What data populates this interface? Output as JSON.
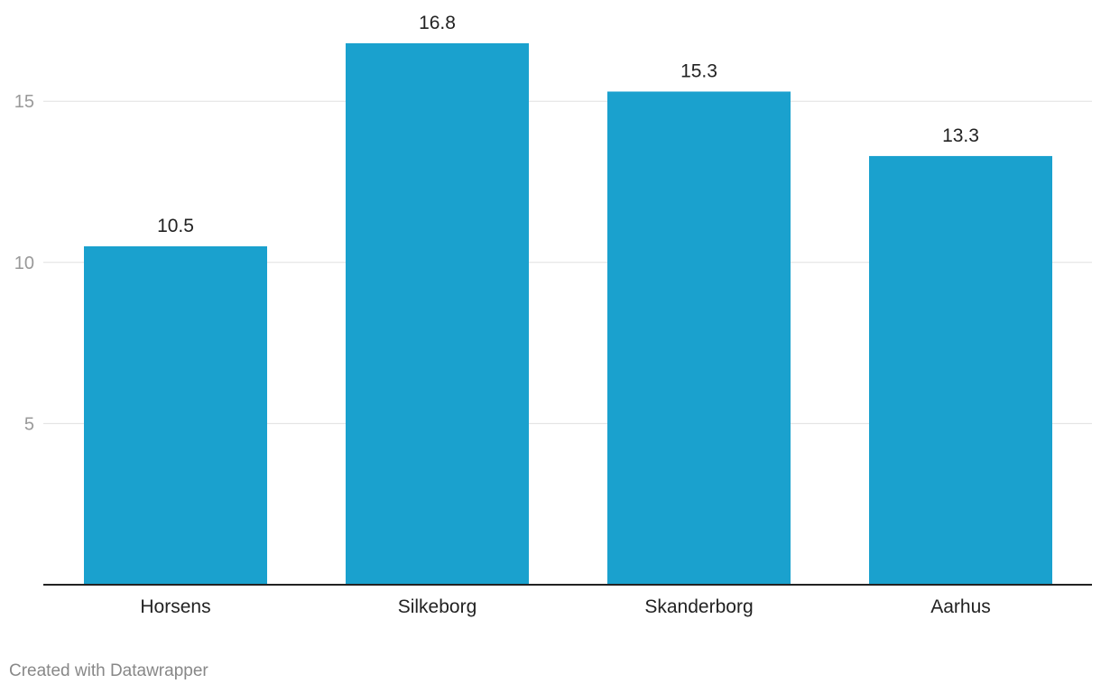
{
  "chart_data": {
    "type": "bar",
    "title": "",
    "xlabel": "",
    "ylabel": "",
    "categories": [
      "Horsens",
      "Silkeborg",
      "Skanderborg",
      "Aarhus"
    ],
    "values": [
      10.5,
      16.8,
      15.3,
      13.3
    ],
    "value_labels": [
      "10.5",
      "16.8",
      "15.3",
      "13.3"
    ],
    "yticks": [
      5,
      10,
      15
    ],
    "ytick_labels": [
      "5",
      "10",
      "15"
    ],
    "ylim": [
      0,
      18
    ],
    "grid": true,
    "bar_color": "#1aa1ce"
  },
  "footer": {
    "credit": "Created with Datawrapper"
  }
}
